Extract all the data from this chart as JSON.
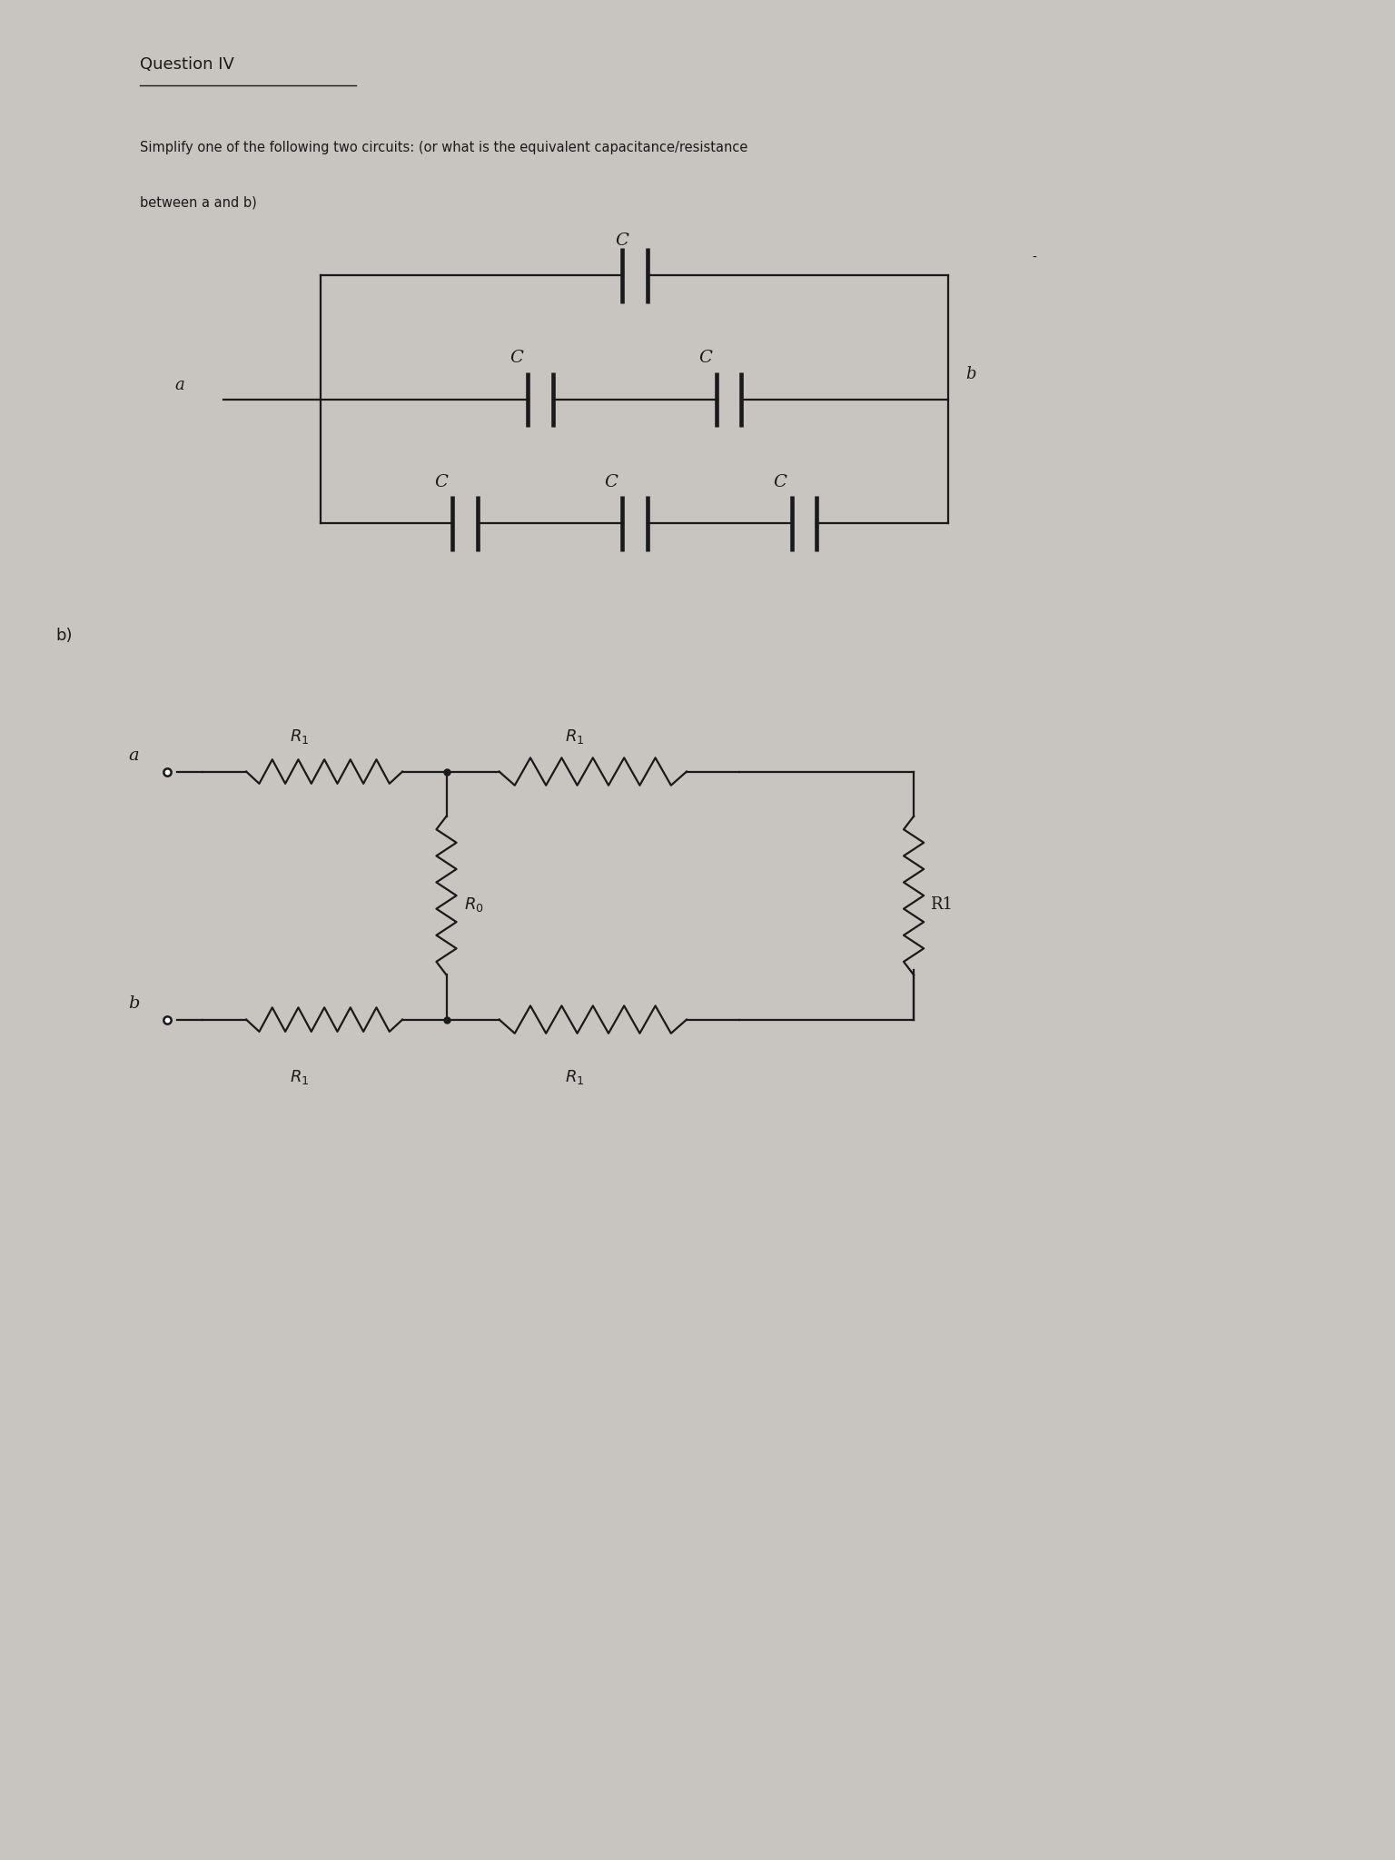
{
  "bg_color": "#c8c4c0",
  "paper_color": "#e8e4e0",
  "line_color": "#1a1a1a",
  "text_color": "#1a1a1a",
  "fig_width": 15.36,
  "fig_height": 20.48,
  "dpi": 100,
  "title": "Question IV",
  "subtitle_line1": "Simplify one of the following two circuits: (or what is the equivalent capacitance/resistance",
  "subtitle_line2": "between a and b)"
}
